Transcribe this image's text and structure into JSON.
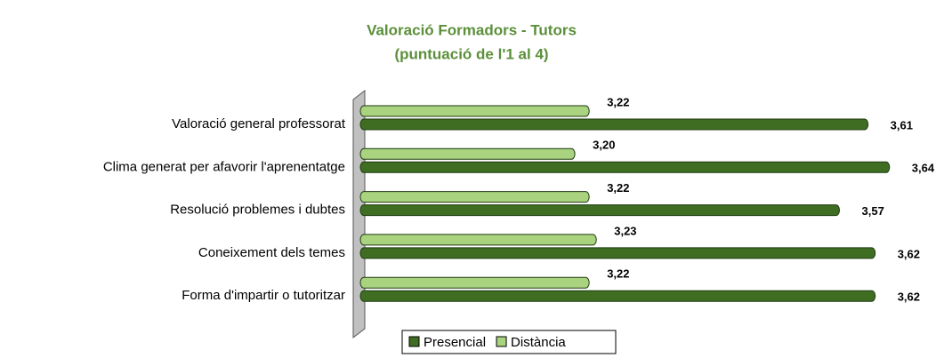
{
  "chart_data": {
    "type": "hbar",
    "title": "Valoració Formadors - Tutors",
    "subtitle": "(puntuació de l'1 al 4)",
    "categories": [
      "Valoració general professorat",
      "Clima generat per afavorir l'aprenentatge",
      "Resolució problemes i dubtes",
      "Coneixement dels temes",
      "Forma d'impartir o tutoritzar"
    ],
    "series": [
      {
        "name": "Presencial",
        "color": "#3f6e22",
        "values": [
          3.61,
          3.64,
          3.57,
          3.62,
          3.62
        ],
        "value_labels": [
          "3,61",
          "3,64",
          "3,57",
          "3,62",
          "3,62"
        ]
      },
      {
        "name": "Distància",
        "color": "#a9d37f",
        "values": [
          3.22,
          3.2,
          3.22,
          3.23,
          3.22
        ],
        "value_labels": [
          "3,22",
          "3,20",
          "3,22",
          "3,23",
          "3,22"
        ]
      }
    ],
    "xlim": [
      2.9,
      3.7
    ],
    "legend": "bottom"
  }
}
